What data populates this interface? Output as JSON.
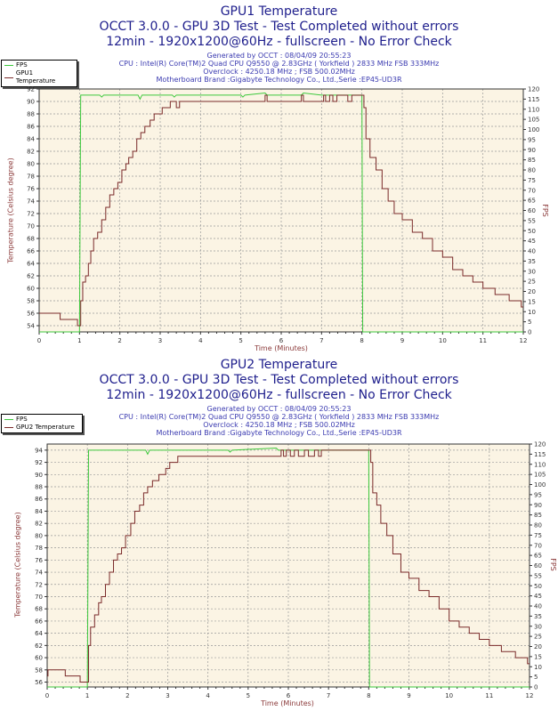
{
  "colors": {
    "title": "#1e1e8c",
    "info": "#3a3ab0",
    "fps": "#3cc83c",
    "temperature": "#7a2a2a",
    "plot_bg": "#fbf4e4",
    "axis_label": "#8b3a3a"
  },
  "chart_data": [
    {
      "type": "line",
      "title": "GPU1 Temperature",
      "subtitle": "OCCT 3.0.0 - GPU 3D Test - Test Completed without errors",
      "subtitle2": "12min - 1920x1200@60Hz - fullscreen - No Error Check",
      "info": [
        "Generated by OCCT : 08/04/09 20:55:23",
        "CPU : Intel(R) Core(TM)2 Quad CPU Q9550 @ 2.83GHz ( Yorkfield ) 2833 MHz FSB 333MHz",
        "Overclock : 4250.18 MHz ; FSB 500.02MHz",
        "Motherboard Brand :Gigabyte Technology Co., Ltd.,Serie :EP45-UD3R"
      ],
      "legend": [
        "FPS",
        "GPU1 Temperature"
      ],
      "legend_position": "top-left",
      "xlabel": "Time (Minutes)",
      "ylabel": "Temperature (Celsius degree)",
      "y2label": "FPS",
      "xlim": [
        0,
        12
      ],
      "xstep": 1,
      "ylim": [
        53,
        92
      ],
      "ystep": 2,
      "yticks_from": 54,
      "y2lim": [
        0,
        120
      ],
      "y2step": 5,
      "grid": true,
      "series": [
        {
          "name": "FPS",
          "axis": "right",
          "points": [
            [
              0,
              0
            ],
            [
              1.0,
              0
            ],
            [
              1.03,
              117
            ],
            [
              1.5,
              117
            ],
            [
              1.55,
              116
            ],
            [
              1.6,
              117
            ],
            [
              2.45,
              117
            ],
            [
              2.5,
              115
            ],
            [
              2.55,
              117
            ],
            [
              3.3,
              117
            ],
            [
              3.35,
              116
            ],
            [
              3.4,
              117
            ],
            [
              5.0,
              117
            ],
            [
              5.05,
              116
            ],
            [
              5.1,
              117
            ],
            [
              5.6,
              118
            ],
            [
              5.65,
              117
            ],
            [
              6.5,
              117
            ],
            [
              6.55,
              118
            ],
            [
              7.0,
              117
            ],
            [
              7.9,
              117
            ],
            [
              8.0,
              117
            ],
            [
              8.02,
              0
            ],
            [
              12,
              0
            ]
          ]
        },
        {
          "name": "GPU1 Temperature",
          "axis": "left",
          "points": [
            [
              0,
              56
            ],
            [
              0.52,
              55
            ],
            [
              0.95,
              54
            ],
            [
              1.03,
              58
            ],
            [
              1.08,
              61
            ],
            [
              1.15,
              62
            ],
            [
              1.22,
              64
            ],
            [
              1.28,
              66
            ],
            [
              1.35,
              68
            ],
            [
              1.45,
              69
            ],
            [
              1.55,
              71
            ],
            [
              1.65,
              73
            ],
            [
              1.75,
              75
            ],
            [
              1.85,
              76
            ],
            [
              1.95,
              77
            ],
            [
              2.05,
              79
            ],
            [
              2.15,
              80
            ],
            [
              2.22,
              81
            ],
            [
              2.32,
              82
            ],
            [
              2.42,
              84
            ],
            [
              2.52,
              85
            ],
            [
              2.62,
              86
            ],
            [
              2.75,
              87
            ],
            [
              2.85,
              88
            ],
            [
              3.05,
              89
            ],
            [
              3.25,
              90
            ],
            [
              3.4,
              89
            ],
            [
              3.48,
              90
            ],
            [
              5.6,
              91
            ],
            [
              5.65,
              90
            ],
            [
              6.5,
              91
            ],
            [
              6.55,
              90
            ],
            [
              7.05,
              91
            ],
            [
              7.1,
              90
            ],
            [
              7.2,
              91
            ],
            [
              7.28,
              90
            ],
            [
              7.38,
              91
            ],
            [
              7.65,
              90
            ],
            [
              7.75,
              91
            ],
            [
              8.05,
              89
            ],
            [
              8.1,
              84
            ],
            [
              8.2,
              81
            ],
            [
              8.35,
              79
            ],
            [
              8.5,
              76
            ],
            [
              8.65,
              74
            ],
            [
              8.8,
              72
            ],
            [
              9.0,
              71
            ],
            [
              9.25,
              69
            ],
            [
              9.5,
              68
            ],
            [
              9.75,
              66
            ],
            [
              10.0,
              65
            ],
            [
              10.25,
              63
            ],
            [
              10.5,
              62
            ],
            [
              10.75,
              61
            ],
            [
              11.0,
              60
            ],
            [
              11.3,
              59
            ],
            [
              11.65,
              58
            ],
            [
              11.95,
              57
            ]
          ]
        }
      ]
    },
    {
      "type": "line",
      "title": "GPU2 Temperature",
      "subtitle": "OCCT 3.0.0 - GPU 3D Test - Test Completed without errors",
      "subtitle2": "12min - 1920x1200@60Hz - fullscreen - No Error Check",
      "info": [
        "Generated by OCCT : 08/04/09 20:55:23",
        "CPU : Intel(R) Core(TM)2 Quad CPU Q9550 @ 2.83GHz ( Yorkfield ) 2833 MHz FSB 333MHz",
        "Overclock : 4250.18 MHz ; FSB 500.02MHz",
        "Motherboard Brand :Gigabyte Technology Co., Ltd.,Serie :EP45-UD3R"
      ],
      "legend": [
        "FPS",
        "GPU2 Temperature"
      ],
      "legend_position": "top-left",
      "xlabel": "Time (Minutes)",
      "ylabel": "Temperature (Celsius degree)",
      "y2label": "FPS",
      "xlim": [
        0,
        12
      ],
      "xstep": 1,
      "ylim": [
        55.2,
        95
      ],
      "ystep": 2,
      "yticks_from": 56,
      "y2lim": [
        0,
        120
      ],
      "y2step": 5,
      "grid": true,
      "series": [
        {
          "name": "FPS",
          "axis": "right",
          "points": [
            [
              0,
              0
            ],
            [
              1.0,
              0
            ],
            [
              1.03,
              117
            ],
            [
              2.45,
              117
            ],
            [
              2.5,
              115
            ],
            [
              2.55,
              117
            ],
            [
              4.5,
              117
            ],
            [
              4.55,
              116
            ],
            [
              4.6,
              117
            ],
            [
              5.7,
              118
            ],
            [
              5.75,
              117
            ],
            [
              7.0,
              117
            ],
            [
              8.0,
              117
            ],
            [
              8.02,
              0
            ],
            [
              12,
              0
            ]
          ]
        },
        {
          "name": "GPU2 Temperature",
          "axis": "left",
          "points": [
            [
              0,
              57
            ],
            [
              0.02,
              58
            ],
            [
              0.45,
              57
            ],
            [
              0.82,
              56
            ],
            [
              1.03,
              62
            ],
            [
              1.08,
              65
            ],
            [
              1.18,
              67
            ],
            [
              1.28,
              69
            ],
            [
              1.35,
              70
            ],
            [
              1.45,
              72
            ],
            [
              1.55,
              74
            ],
            [
              1.65,
              76
            ],
            [
              1.75,
              77
            ],
            [
              1.85,
              78
            ],
            [
              1.95,
              80
            ],
            [
              2.08,
              82
            ],
            [
              2.18,
              84
            ],
            [
              2.3,
              85
            ],
            [
              2.4,
              87
            ],
            [
              2.5,
              88
            ],
            [
              2.62,
              89
            ],
            [
              2.78,
              90
            ],
            [
              2.95,
              91
            ],
            [
              3.05,
              92
            ],
            [
              3.25,
              93
            ],
            [
              5.82,
              94
            ],
            [
              5.88,
              93
            ],
            [
              5.95,
              94
            ],
            [
              6.05,
              93
            ],
            [
              6.15,
              94
            ],
            [
              6.25,
              93
            ],
            [
              6.4,
              94
            ],
            [
              6.5,
              93
            ],
            [
              6.65,
              94
            ],
            [
              6.75,
              93
            ],
            [
              6.82,
              94
            ],
            [
              8.05,
              92
            ],
            [
              8.1,
              87
            ],
            [
              8.2,
              85
            ],
            [
              8.3,
              82
            ],
            [
              8.45,
              80
            ],
            [
              8.6,
              77
            ],
            [
              8.8,
              74
            ],
            [
              9.0,
              73
            ],
            [
              9.25,
              71
            ],
            [
              9.5,
              70
            ],
            [
              9.75,
              68
            ],
            [
              10.0,
              66
            ],
            [
              10.25,
              65
            ],
            [
              10.5,
              64
            ],
            [
              10.75,
              63
            ],
            [
              11.0,
              62
            ],
            [
              11.3,
              61
            ],
            [
              11.65,
              60
            ],
            [
              11.95,
              59
            ]
          ]
        }
      ]
    }
  ]
}
